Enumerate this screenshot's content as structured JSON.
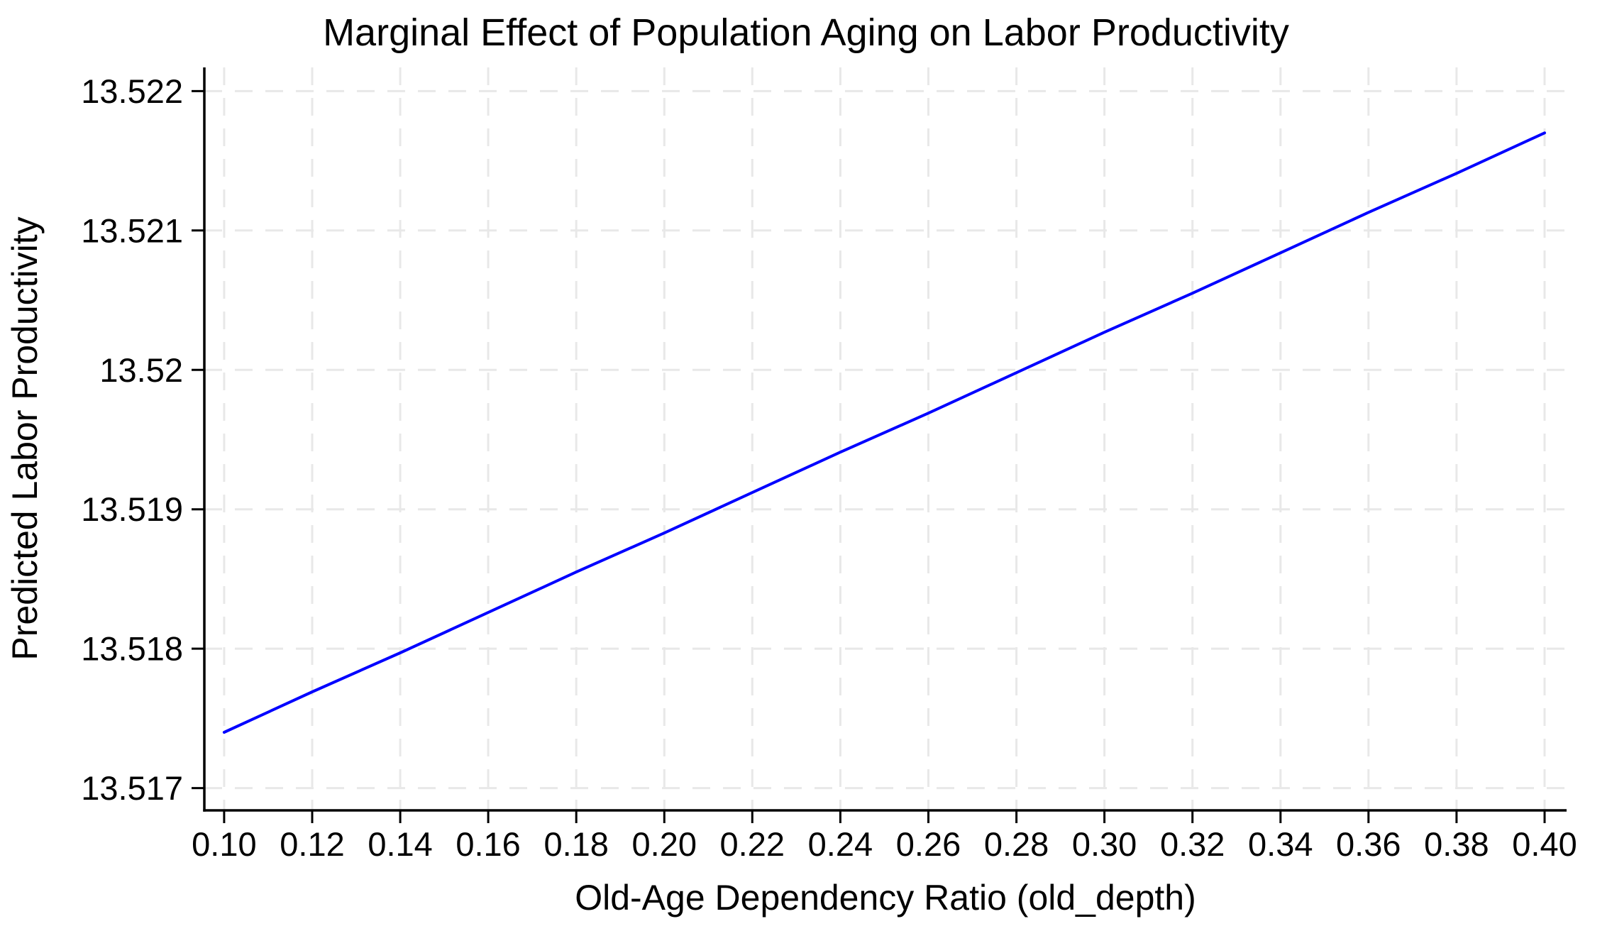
{
  "chart_data": {
    "type": "line",
    "title": "Marginal Effect of Population Aging on Labor Productivity",
    "xlabel": "Old-Age Dependency Ratio (old_depth)",
    "ylabel": "Predicted Labor Productivity",
    "grid": true,
    "grid_style": "dashed",
    "legend": "none",
    "xlim": [
      0.0955,
      0.405
    ],
    "ylim": [
      13.51684,
      13.52217
    ],
    "x_ticks": [
      {
        "value": 0.1,
        "label": "0.10"
      },
      {
        "value": 0.12,
        "label": "0.12"
      },
      {
        "value": 0.14,
        "label": "0.14"
      },
      {
        "value": 0.16,
        "label": "0.16"
      },
      {
        "value": 0.18,
        "label": "0.18"
      },
      {
        "value": 0.2,
        "label": "0.20"
      },
      {
        "value": 0.22,
        "label": "0.22"
      },
      {
        "value": 0.24,
        "label": "0.24"
      },
      {
        "value": 0.26,
        "label": "0.26"
      },
      {
        "value": 0.28,
        "label": "0.28"
      },
      {
        "value": 0.3,
        "label": "0.30"
      },
      {
        "value": 0.32,
        "label": "0.32"
      },
      {
        "value": 0.34,
        "label": "0.34"
      },
      {
        "value": 0.36,
        "label": "0.36"
      },
      {
        "value": 0.38,
        "label": "0.38"
      },
      {
        "value": 0.4,
        "label": "0.40"
      }
    ],
    "y_ticks": [
      {
        "value": 13.517,
        "label": "13.517"
      },
      {
        "value": 13.518,
        "label": "13.518"
      },
      {
        "value": 13.519,
        "label": "13.519"
      },
      {
        "value": 13.52,
        "label": "13.52"
      },
      {
        "value": 13.521,
        "label": "13.521"
      },
      {
        "value": 13.522,
        "label": "13.522"
      }
    ],
    "series": [
      {
        "name": "Predicted Labor Productivity",
        "type": "line",
        "color": "#0000ff",
        "marker": "none",
        "x": [
          0.1,
          0.12,
          0.14,
          0.16,
          0.18,
          0.2,
          0.22,
          0.24,
          0.26,
          0.28,
          0.3,
          0.32,
          0.34,
          0.36,
          0.38,
          0.4
        ],
        "y": [
          13.5174,
          13.51769,
          13.51797,
          13.51826,
          13.51855,
          13.51883,
          13.51912,
          13.51941,
          13.51969,
          13.51998,
          13.52027,
          13.52055,
          13.52084,
          13.52113,
          13.52141,
          13.5217
        ]
      }
    ],
    "colors": {
      "line": "#0000ff",
      "grid": "#e8e8e8",
      "axis": "#000000",
      "text": "#000000",
      "background": "#ffffff"
    }
  }
}
